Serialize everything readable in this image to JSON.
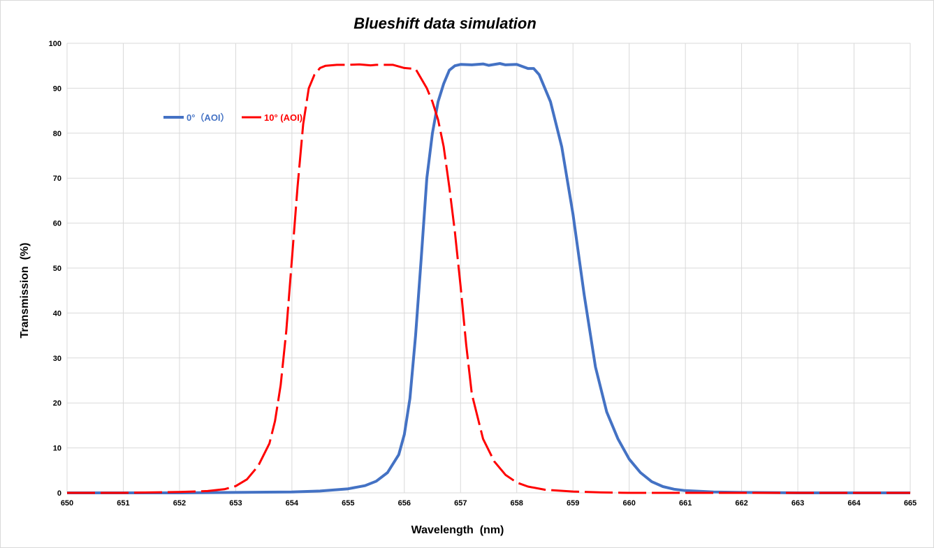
{
  "chart_data": {
    "type": "line",
    "title": "Blueshift data simulation",
    "xlabel": "Wavelength  (nm)",
    "ylabel": "Transmission  (%)",
    "xlim": [
      650,
      665
    ],
    "ylim": [
      0,
      100
    ],
    "xticks": [
      "650",
      "651",
      "652",
      "653",
      "654",
      "655",
      "656",
      "657",
      "658",
      "659",
      "660",
      "661",
      "662",
      "663",
      "664",
      "665"
    ],
    "yticks": [
      "0",
      "10",
      "20",
      "30",
      "40",
      "50",
      "60",
      "70",
      "80",
      "90",
      "100"
    ],
    "grid": true,
    "legend_position": "top-left",
    "series": [
      {
        "name": "0°（AOI）",
        "color": "#4472C4",
        "dash": "solid",
        "x": [
          650,
          651,
          652,
          653,
          654,
          654.5,
          655,
          655.3,
          655.5,
          655.7,
          655.9,
          656.0,
          656.1,
          656.2,
          656.3,
          656.4,
          656.5,
          656.6,
          656.7,
          656.8,
          656.9,
          657.0,
          657.2,
          657.4,
          657.5,
          657.7,
          657.8,
          658.0,
          658.2,
          658.3,
          658.4,
          658.6,
          658.8,
          659.0,
          659.2,
          659.4,
          659.6,
          659.8,
          660.0,
          660.2,
          660.4,
          660.6,
          660.8,
          661.0,
          661.5,
          662,
          663,
          664,
          665
        ],
        "y": [
          0,
          0,
          0,
          0.1,
          0.2,
          0.4,
          0.9,
          1.6,
          2.6,
          4.5,
          8.5,
          13,
          21,
          35,
          52,
          70,
          80,
          87,
          91,
          94,
          95,
          95.3,
          95.2,
          95.4,
          95.1,
          95.5,
          95.2,
          95.3,
          94.4,
          94.4,
          93,
          87,
          77,
          62,
          44,
          28,
          18,
          12,
          7.5,
          4.5,
          2.5,
          1.4,
          0.8,
          0.5,
          0.2,
          0.1,
          0,
          0,
          0
        ]
      },
      {
        "name": "10° (AOI)",
        "color": "#FF0000",
        "dash": "dashed",
        "x": [
          650,
          651,
          652,
          652.5,
          652.8,
          653.0,
          653.2,
          653.4,
          653.6,
          653.7,
          653.8,
          653.9,
          654.0,
          654.1,
          654.2,
          654.3,
          654.4,
          654.5,
          654.6,
          654.8,
          655.0,
          655.2,
          655.4,
          655.5,
          655.6,
          655.8,
          656.0,
          656.2,
          656.4,
          656.5,
          656.6,
          656.7,
          656.8,
          656.9,
          657.0,
          657.1,
          657.2,
          657.4,
          657.6,
          657.8,
          658.0,
          658.2,
          658.5,
          659.0,
          659.5,
          660,
          661,
          662,
          663,
          664,
          665
        ],
        "y": [
          0,
          0,
          0.2,
          0.4,
          0.8,
          1.5,
          3,
          6,
          11,
          16,
          24,
          36,
          52,
          68,
          82,
          90,
          93,
          94.5,
          95,
          95.2,
          95.2,
          95.3,
          95.1,
          95.2,
          95.2,
          95.2,
          94.5,
          94.3,
          90,
          87,
          83,
          77,
          68,
          58,
          46,
          33,
          22,
          12,
          7,
          4,
          2.3,
          1.4,
          0.7,
          0.3,
          0.1,
          0,
          0,
          0,
          0,
          0,
          0
        ]
      }
    ]
  }
}
